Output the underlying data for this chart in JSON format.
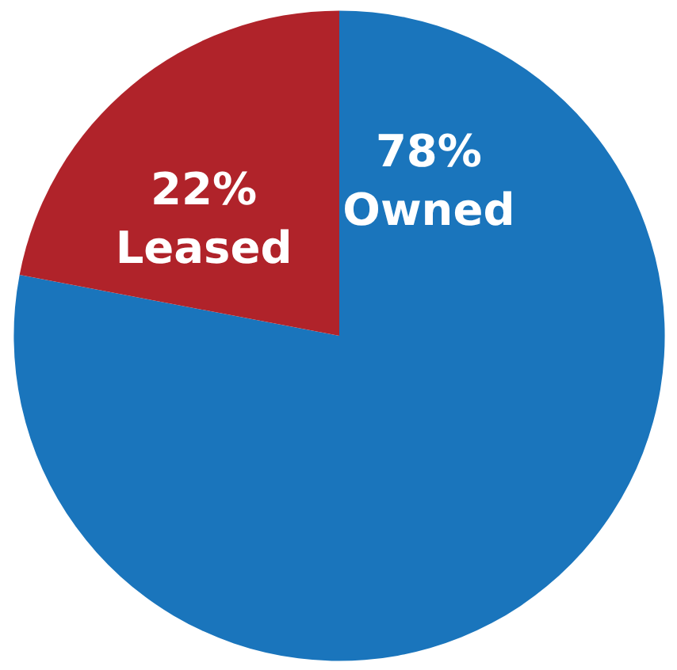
{
  "chart_data": {
    "type": "pie",
    "categories": [
      "Owned",
      "Leased"
    ],
    "values": [
      78,
      22
    ],
    "colors": [
      "#1a75bc",
      "#b0232a"
    ],
    "value_labels": [
      "78%",
      "22%"
    ]
  }
}
